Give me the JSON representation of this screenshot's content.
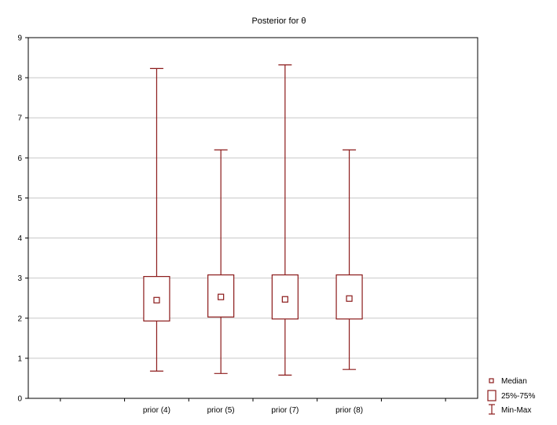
{
  "chart_data": {
    "type": "boxplot",
    "title": "Posterior for  θ",
    "xlabel": "",
    "ylabel": "",
    "categories": [
      "prior (4)",
      "prior (5)",
      "prior (7)",
      "prior (8)"
    ],
    "series": [
      {
        "name": "",
        "median": [
          2.45,
          2.53,
          2.47,
          2.49
        ],
        "q1": [
          1.93,
          2.03,
          1.98,
          1.98
        ],
        "q3": [
          3.04,
          3.08,
          3.08,
          3.08
        ],
        "min": [
          0.68,
          0.62,
          0.58,
          0.72
        ],
        "max": [
          8.23,
          6.2,
          8.32,
          6.2
        ]
      }
    ],
    "ylim": [
      0,
      9
    ],
    "yticks": [
      0,
      1,
      2,
      3,
      4,
      5,
      6,
      7,
      8,
      9
    ],
    "grid": true,
    "legend": {
      "placement": "bottom-right",
      "entries": [
        "Median",
        "25%-75%",
        "Min-Max"
      ]
    },
    "colors": {
      "box": "#8b1a1a",
      "grid": "#c8c8c8",
      "axis": "#000000"
    }
  }
}
